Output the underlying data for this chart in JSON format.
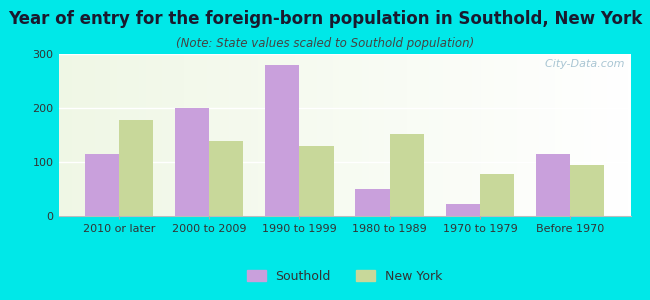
{
  "title": "Year of entry for the foreign-born population in Southold, New York",
  "subtitle": "(Note: State values scaled to Southold population)",
  "categories": [
    "2010 or later",
    "2000 to 2009",
    "1990 to 1999",
    "1980 to 1989",
    "1970 to 1979",
    "Before 1970"
  ],
  "southold_values": [
    115,
    200,
    280,
    50,
    22,
    115
  ],
  "newyork_values": [
    178,
    138,
    130,
    152,
    78,
    95
  ],
  "southold_color": "#c9a0dc",
  "newyork_color": "#c8d89a",
  "background_outer": "#00e8e8",
  "ylim": [
    0,
    300
  ],
  "yticks": [
    0,
    100,
    200,
    300
  ],
  "title_fontsize": 12,
  "subtitle_fontsize": 8.5,
  "axis_label_fontsize": 8,
  "legend_fontsize": 9,
  "bar_width": 0.38,
  "watermark": "  City-Data.com",
  "title_color": "#1a1a2e",
  "subtitle_color": "#444444"
}
